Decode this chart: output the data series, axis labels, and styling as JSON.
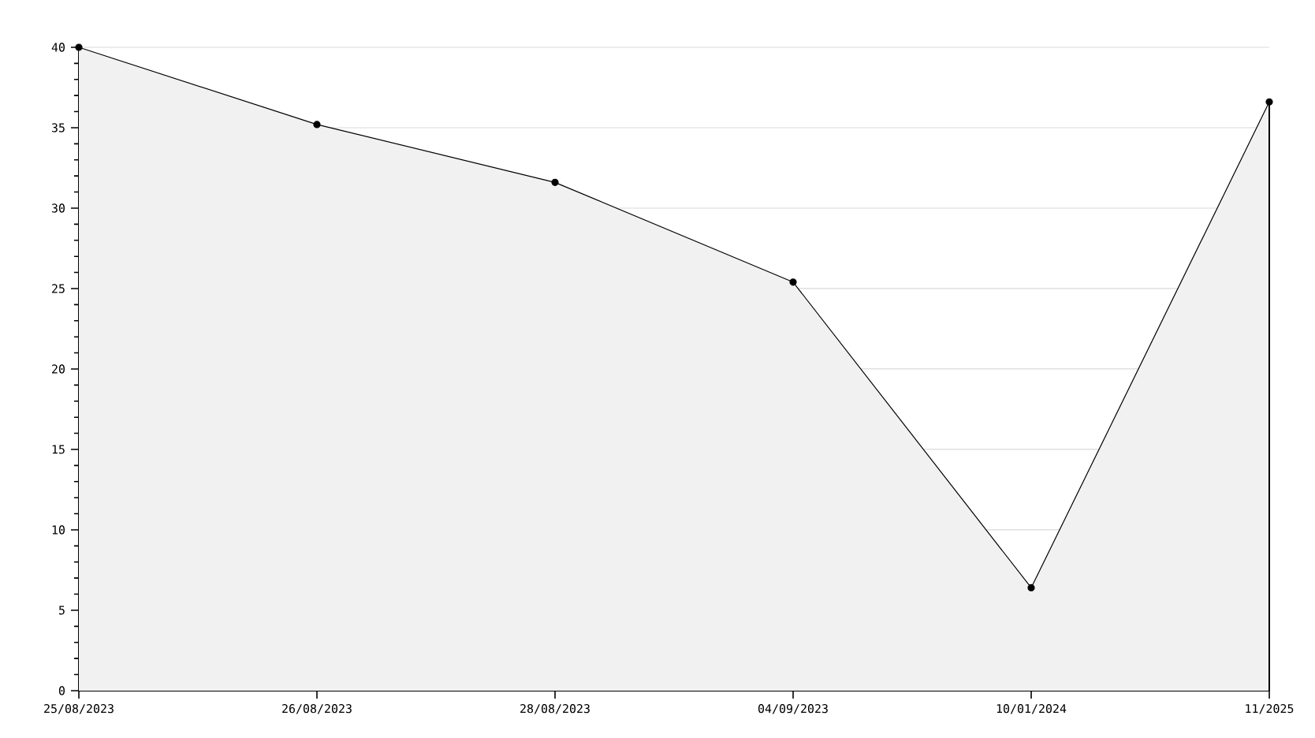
{
  "chart_data": {
    "type": "area",
    "categories": [
      "25/08/2023",
      "26/08/2023",
      "28/08/2023",
      "04/09/2023",
      "10/01/2024",
      "11/2025"
    ],
    "series": [
      {
        "color": "#000000",
        "values": [
          40,
          35.2,
          31.6,
          25.4,
          6.4,
          36.6
        ]
      }
    ],
    "ylim": [
      0,
      40
    ],
    "yticks": [
      0,
      5,
      10,
      15,
      20,
      25,
      30,
      35,
      40
    ],
    "grid": "y",
    "marker": "circle",
    "line_style": "solid"
  }
}
